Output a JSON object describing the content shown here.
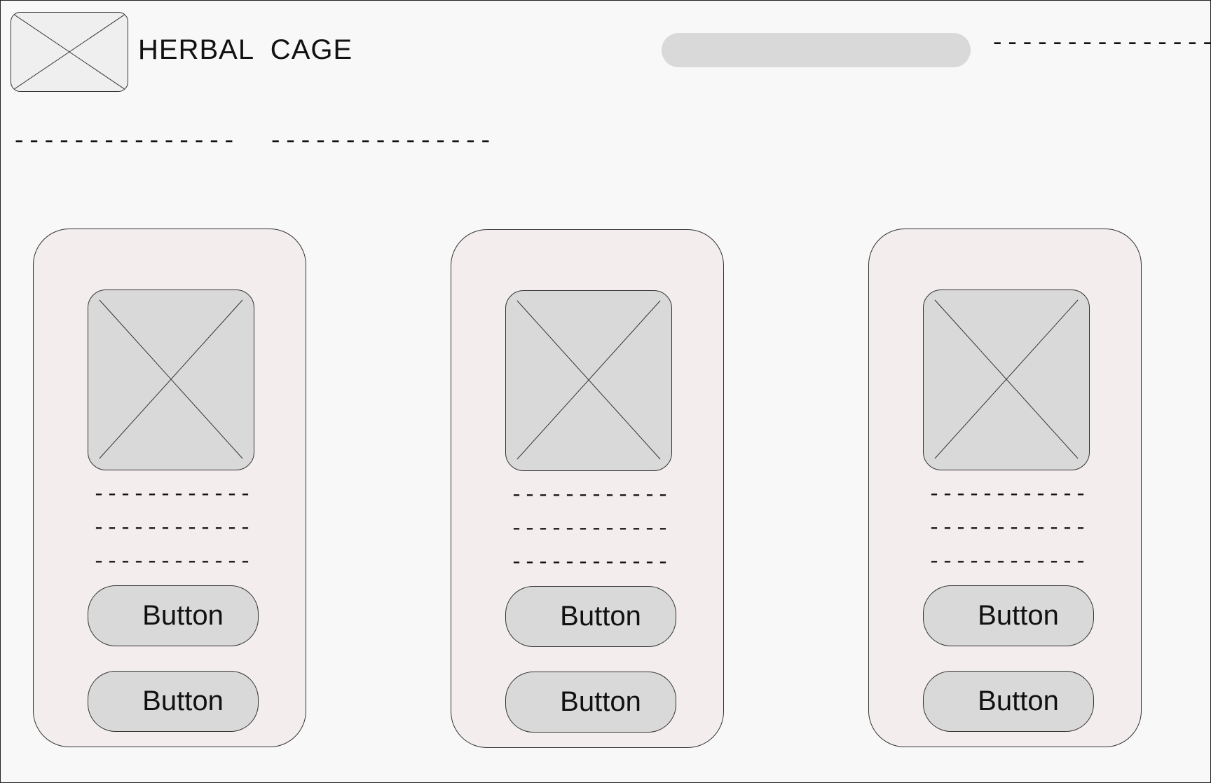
{
  "header": {
    "brand": "HERBAL  CAGE",
    "search": {
      "value": "",
      "placeholder": ""
    },
    "link": "---------------"
  },
  "nav": {
    "items": [
      {
        "label": "---------------"
      },
      {
        "label": "---------------"
      }
    ]
  },
  "products": [
    {
      "lines": [
        "------------",
        "------------",
        "------------"
      ],
      "buttons": [
        "Button",
        "Button"
      ]
    },
    {
      "lines": [
        "------------",
        "------------",
        "------------"
      ],
      "buttons": [
        "Button",
        "Button"
      ]
    },
    {
      "lines": [
        "------------",
        "------------",
        "------------"
      ],
      "buttons": [
        "Button",
        "Button"
      ]
    }
  ],
  "colors": {
    "page_background": "#f8f8f8",
    "card_background": "#f3eded",
    "placeholder_fill": "#d9d9d9",
    "outline": "#333333"
  },
  "icons": {
    "logo": "image-placeholder-icon",
    "product_image": "image-placeholder-icon"
  }
}
